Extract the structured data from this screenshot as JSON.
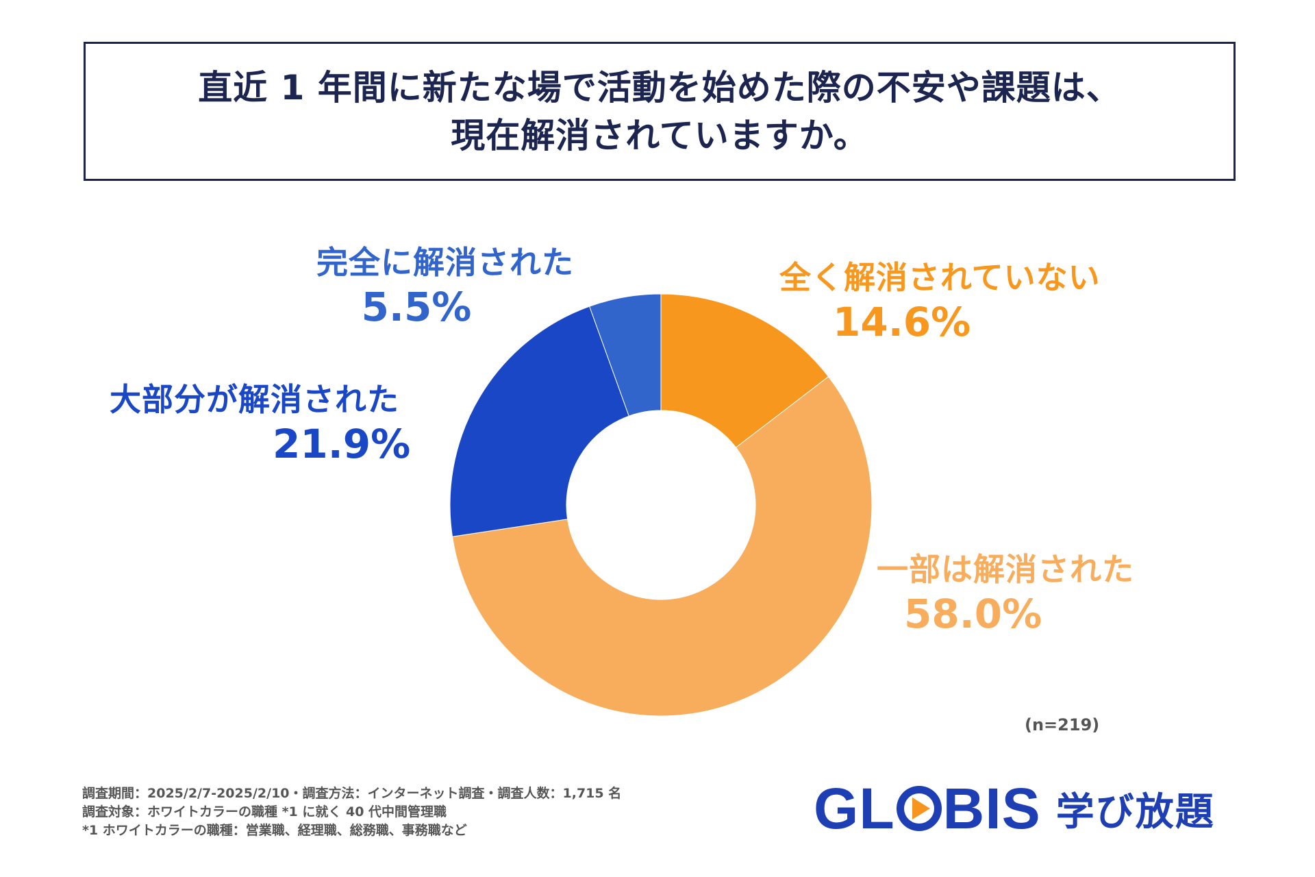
{
  "title": {
    "line1": "直近 1 年間に新たな場で活動を始めた際の不安や課題は、",
    "line2": "現在解消されていますか。"
  },
  "chart_data": {
    "type": "pie",
    "donut": true,
    "slices": [
      {
        "label": "全く解消されていない",
        "value": 14.6,
        "display": "14.6%",
        "color": "#f7971e"
      },
      {
        "label": "一部は解消された",
        "value": 58.0,
        "display": "58.0%",
        "color": "#f7ad5c"
      },
      {
        "label": "大部分が解消された",
        "value": 21.9,
        "display": "21.9%",
        "color": "#1a47c6"
      },
      {
        "label": "完全に解消された",
        "value": 5.5,
        "display": "5.5%",
        "color": "#3265cc"
      }
    ],
    "start": "top",
    "direction": "clockwise",
    "n_label": "(n=219)"
  },
  "footnotes": [
    "調査期間：2025/2/7-2025/2/10・調査方法：インターネット調査・調査人数：1,715 名",
    "調査対象：ホワイトカラーの職種 *1 に就く 40 代中間管理職",
    "*1 ホワイトカラーの職種：営業職、経理職、総務職、事務職など"
  ],
  "brand": {
    "word_before": "GL",
    "word_after": "BIS",
    "jp": "学び放題",
    "colors": {
      "primary": "#1e3fb4",
      "accent": "#f7941d"
    }
  }
}
